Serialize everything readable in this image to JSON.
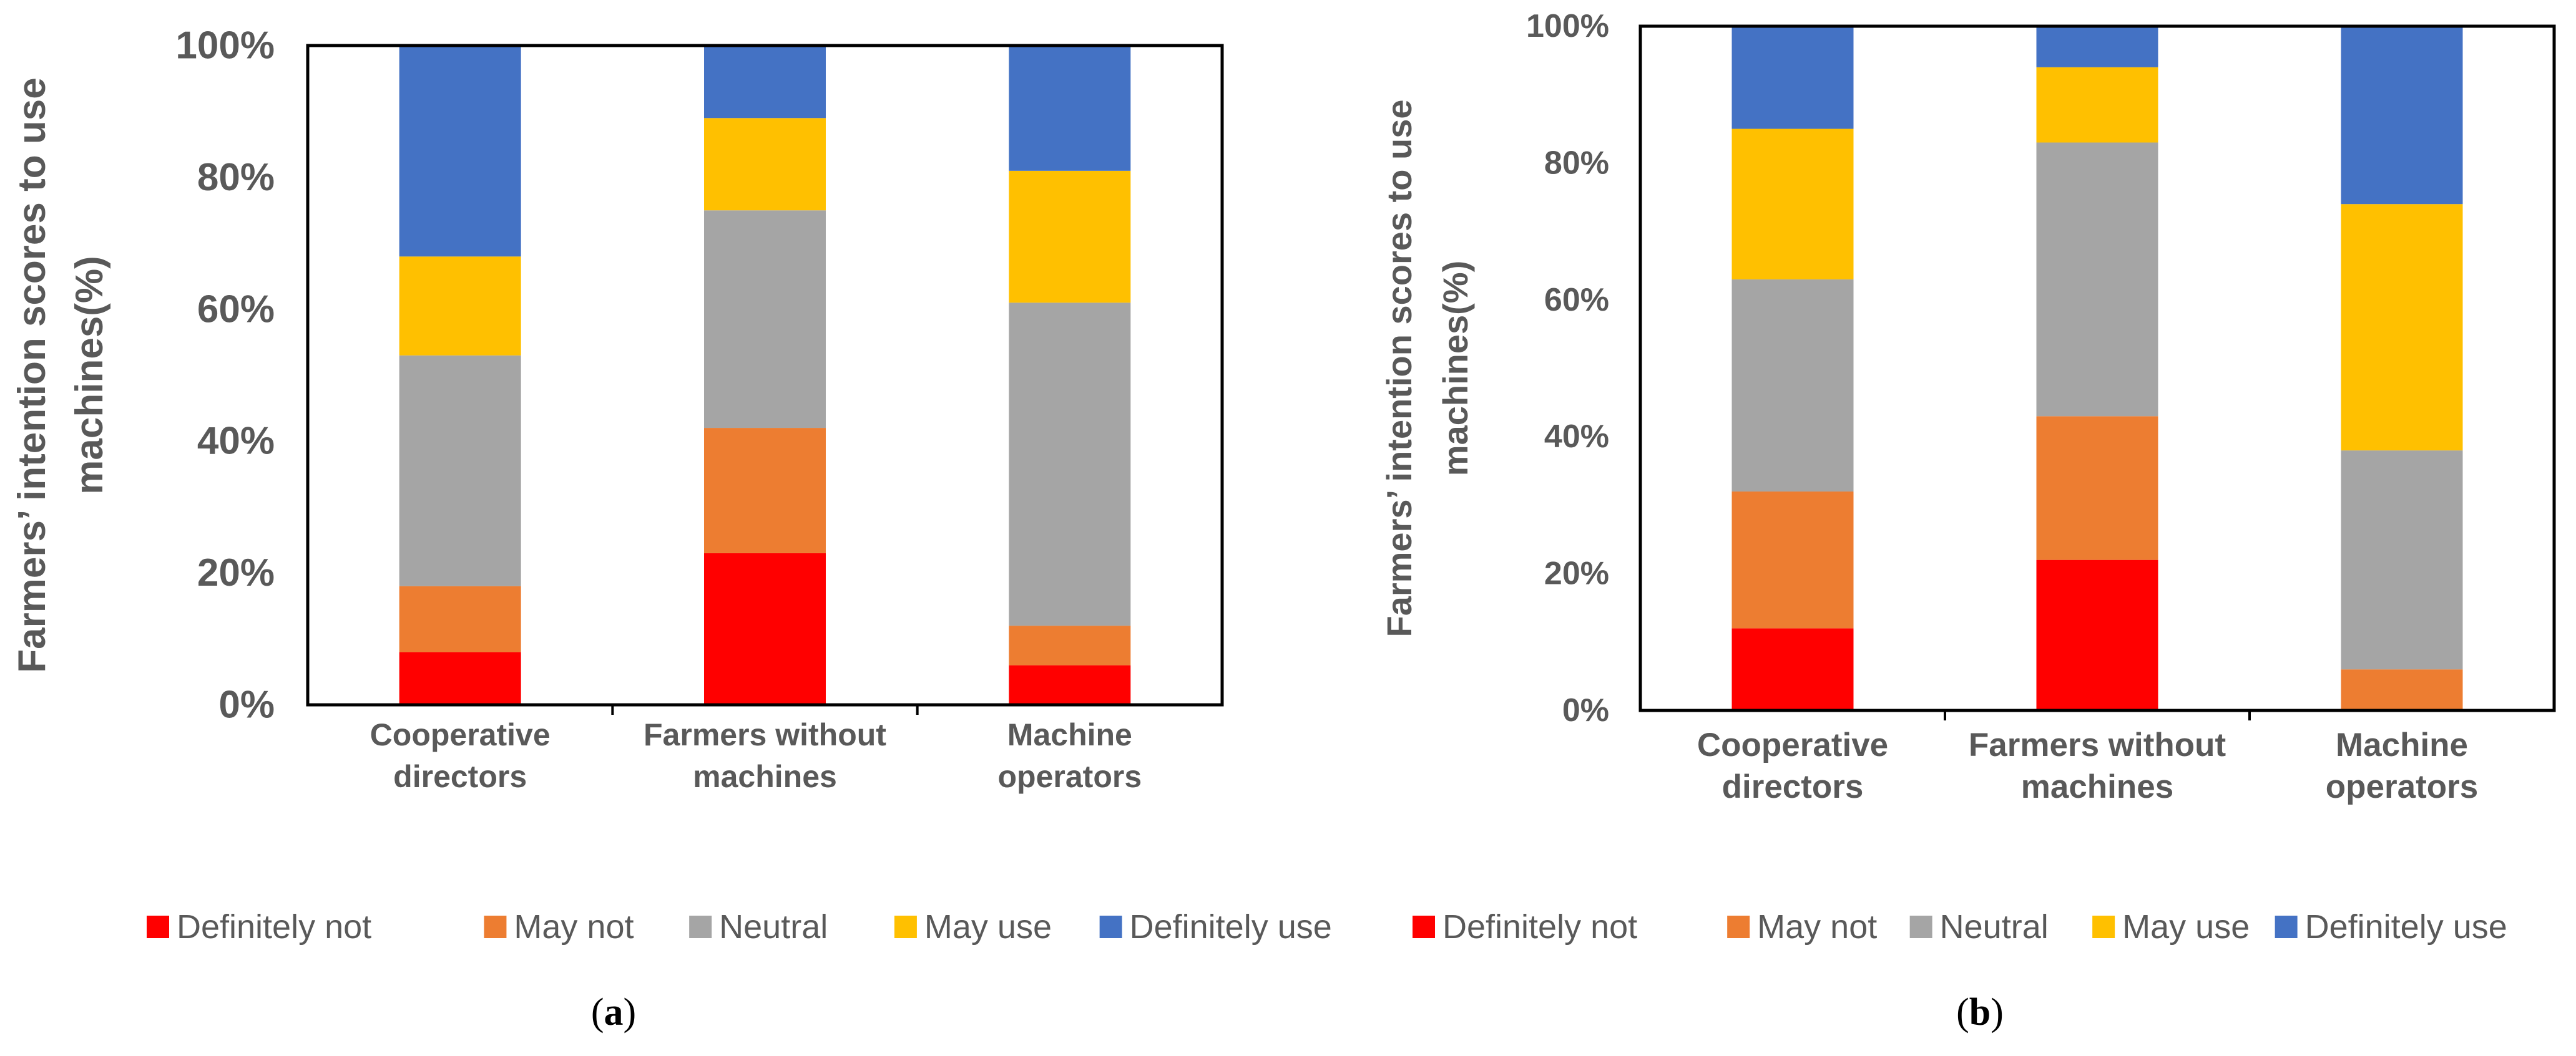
{
  "chart_data": [
    {
      "type": "bar",
      "stacked": true,
      "percent": true,
      "panel_label": "(a)",
      "title": "",
      "xlabel": "",
      "ylabel": "Farmers’ intention scores to use machines(%)",
      "ylabel_lines": [
        "Farmers’ intention scores to use",
        "machines(%)"
      ],
      "ylim": [
        0,
        100
      ],
      "yticks": [
        "0%",
        "20%",
        "40%",
        "60%",
        "80%",
        "100%"
      ],
      "categories": [
        "Cooperative directors",
        "Farmers without machines",
        "Machine operators"
      ],
      "category_lines": [
        [
          "Cooperative",
          "directors"
        ],
        [
          "Farmers without",
          "machines"
        ],
        [
          "Machine",
          "operators"
        ]
      ],
      "legend_position": "bottom",
      "series": [
        {
          "name": "Definitely not",
          "color": "#FF0000",
          "values": [
            8,
            23,
            6
          ]
        },
        {
          "name": "May not",
          "color": "#ED7D31",
          "values": [
            10,
            19,
            6
          ]
        },
        {
          "name": "Neutral",
          "color": "#A5A5A5",
          "values": [
            35,
            33,
            49
          ]
        },
        {
          "name": "May use",
          "color": "#FFC000",
          "values": [
            15,
            14,
            20
          ]
        },
        {
          "name": "Definitely use",
          "color": "#4472C4",
          "values": [
            32,
            11,
            19
          ]
        }
      ]
    },
    {
      "type": "bar",
      "stacked": true,
      "percent": true,
      "panel_label": "(b)",
      "title": "",
      "xlabel": "",
      "ylabel": "Farmers’ intention scores to use machines(%)",
      "ylabel_lines": [
        "Farmers’ intention scores to use",
        "machines(%)"
      ],
      "ylim": [
        0,
        100
      ],
      "yticks": [
        "0%",
        "20%",
        "40%",
        "60%",
        "80%",
        "100%"
      ],
      "categories": [
        "Cooperative directors",
        "Farmers without machines",
        "Machine operators"
      ],
      "category_lines": [
        [
          "Cooperative",
          "directors"
        ],
        [
          "Farmers without",
          "machines"
        ],
        [
          "Machine",
          "operators"
        ]
      ],
      "legend_position": "bottom",
      "series": [
        {
          "name": "Definitely not",
          "color": "#FF0000",
          "values": [
            12,
            22,
            0
          ]
        },
        {
          "name": "May not",
          "color": "#ED7D31",
          "values": [
            20,
            21,
            6
          ]
        },
        {
          "name": "Neutral",
          "color": "#A5A5A5",
          "values": [
            31,
            40,
            32
          ]
        },
        {
          "name": "May use",
          "color": "#FFC000",
          "values": [
            22,
            11,
            36
          ]
        },
        {
          "name": "Definitely use",
          "color": "#4472C4",
          "values": [
            15,
            6,
            26
          ]
        }
      ]
    }
  ]
}
